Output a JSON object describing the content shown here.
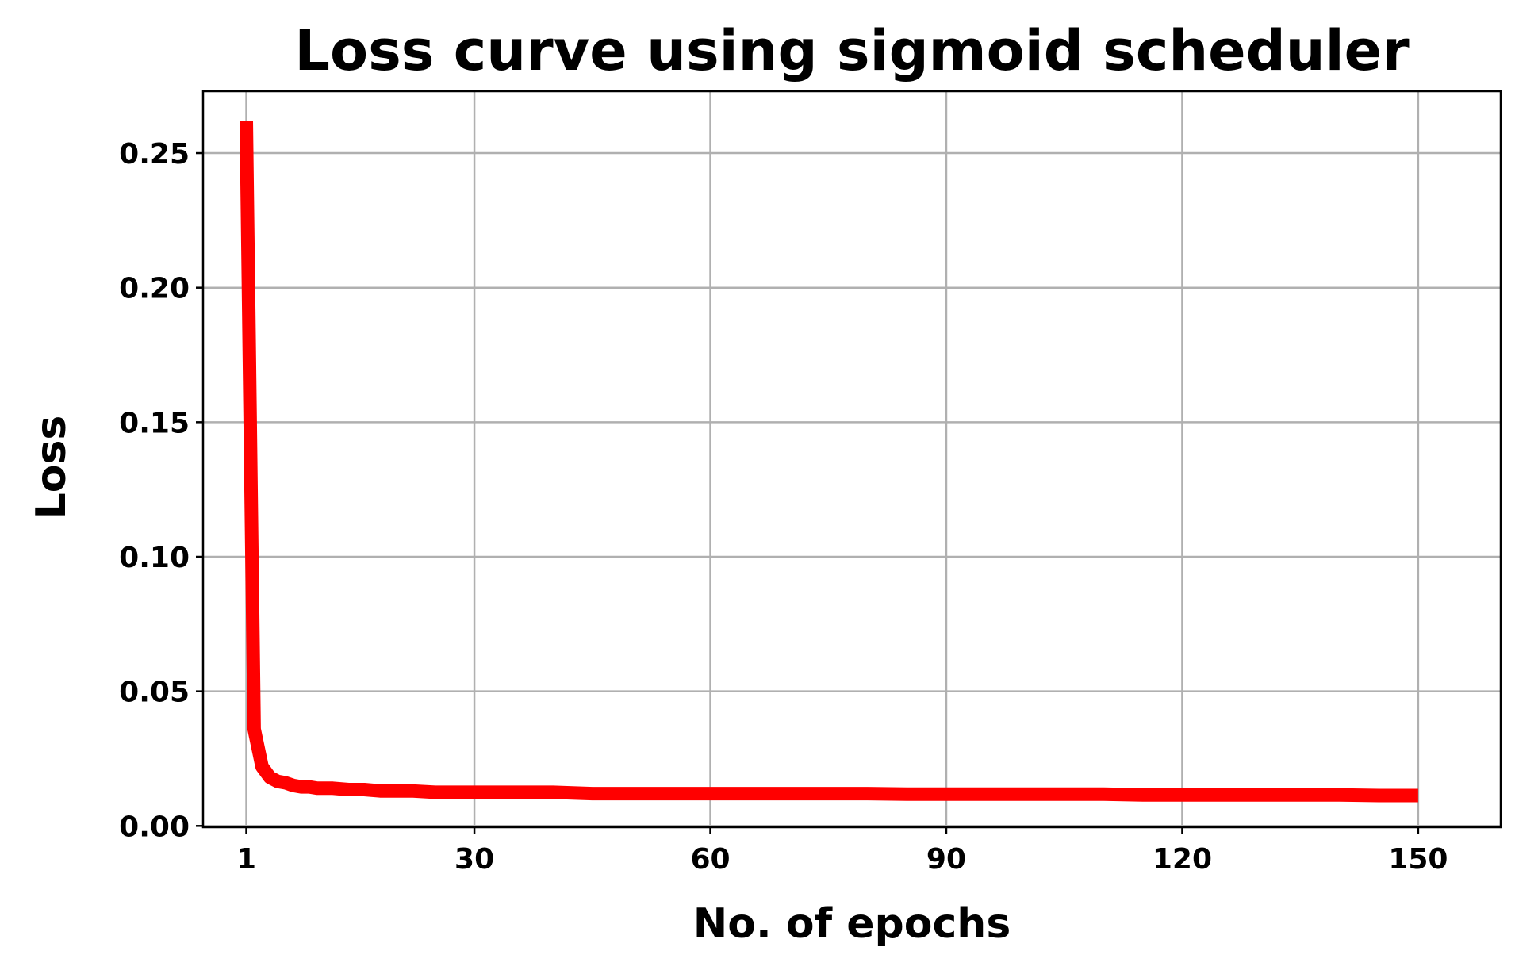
{
  "chart_data": {
    "type": "line",
    "title": "Loss curve using sigmoid scheduler",
    "xlabel": "No. of epochs",
    "ylabel": "Loss",
    "xlim": [
      -4.5,
      160.5
    ],
    "ylim": [
      -0.0005,
      0.273
    ],
    "xticks": [
      1,
      30,
      60,
      90,
      120,
      150
    ],
    "xtick_labels": [
      "1",
      "30",
      "60",
      "90",
      "120",
      "150"
    ],
    "yticks": [
      0.0,
      0.05,
      0.1,
      0.15,
      0.2,
      0.25
    ],
    "ytick_labels": [
      "0.00",
      "0.05",
      "0.10",
      "0.15",
      "0.20",
      "0.25"
    ],
    "grid": true,
    "legend": "none",
    "colors": {
      "line": "#ff0000",
      "grid": "#b0b0b0",
      "axes": "#000000"
    },
    "series": [
      {
        "x": [
          1,
          2,
          3,
          4,
          5,
          6,
          7,
          8,
          9,
          10,
          12,
          14,
          16,
          18,
          20,
          22,
          25,
          28,
          30,
          35,
          40,
          45,
          50,
          55,
          60,
          65,
          70,
          75,
          80,
          85,
          90,
          95,
          100,
          105,
          110,
          115,
          120,
          125,
          130,
          135,
          140,
          145,
          150
        ],
        "y": [
          0.262,
          0.036,
          0.022,
          0.018,
          0.0165,
          0.016,
          0.015,
          0.0145,
          0.0145,
          0.014,
          0.014,
          0.0135,
          0.0135,
          0.013,
          0.013,
          0.013,
          0.0125,
          0.0125,
          0.0125,
          0.0125,
          0.0125,
          0.012,
          0.012,
          0.012,
          0.012,
          0.012,
          0.012,
          0.012,
          0.012,
          0.0118,
          0.0118,
          0.0118,
          0.0118,
          0.0118,
          0.0118,
          0.0115,
          0.0115,
          0.0115,
          0.0115,
          0.0115,
          0.0115,
          0.0113,
          0.0113
        ]
      }
    ]
  }
}
